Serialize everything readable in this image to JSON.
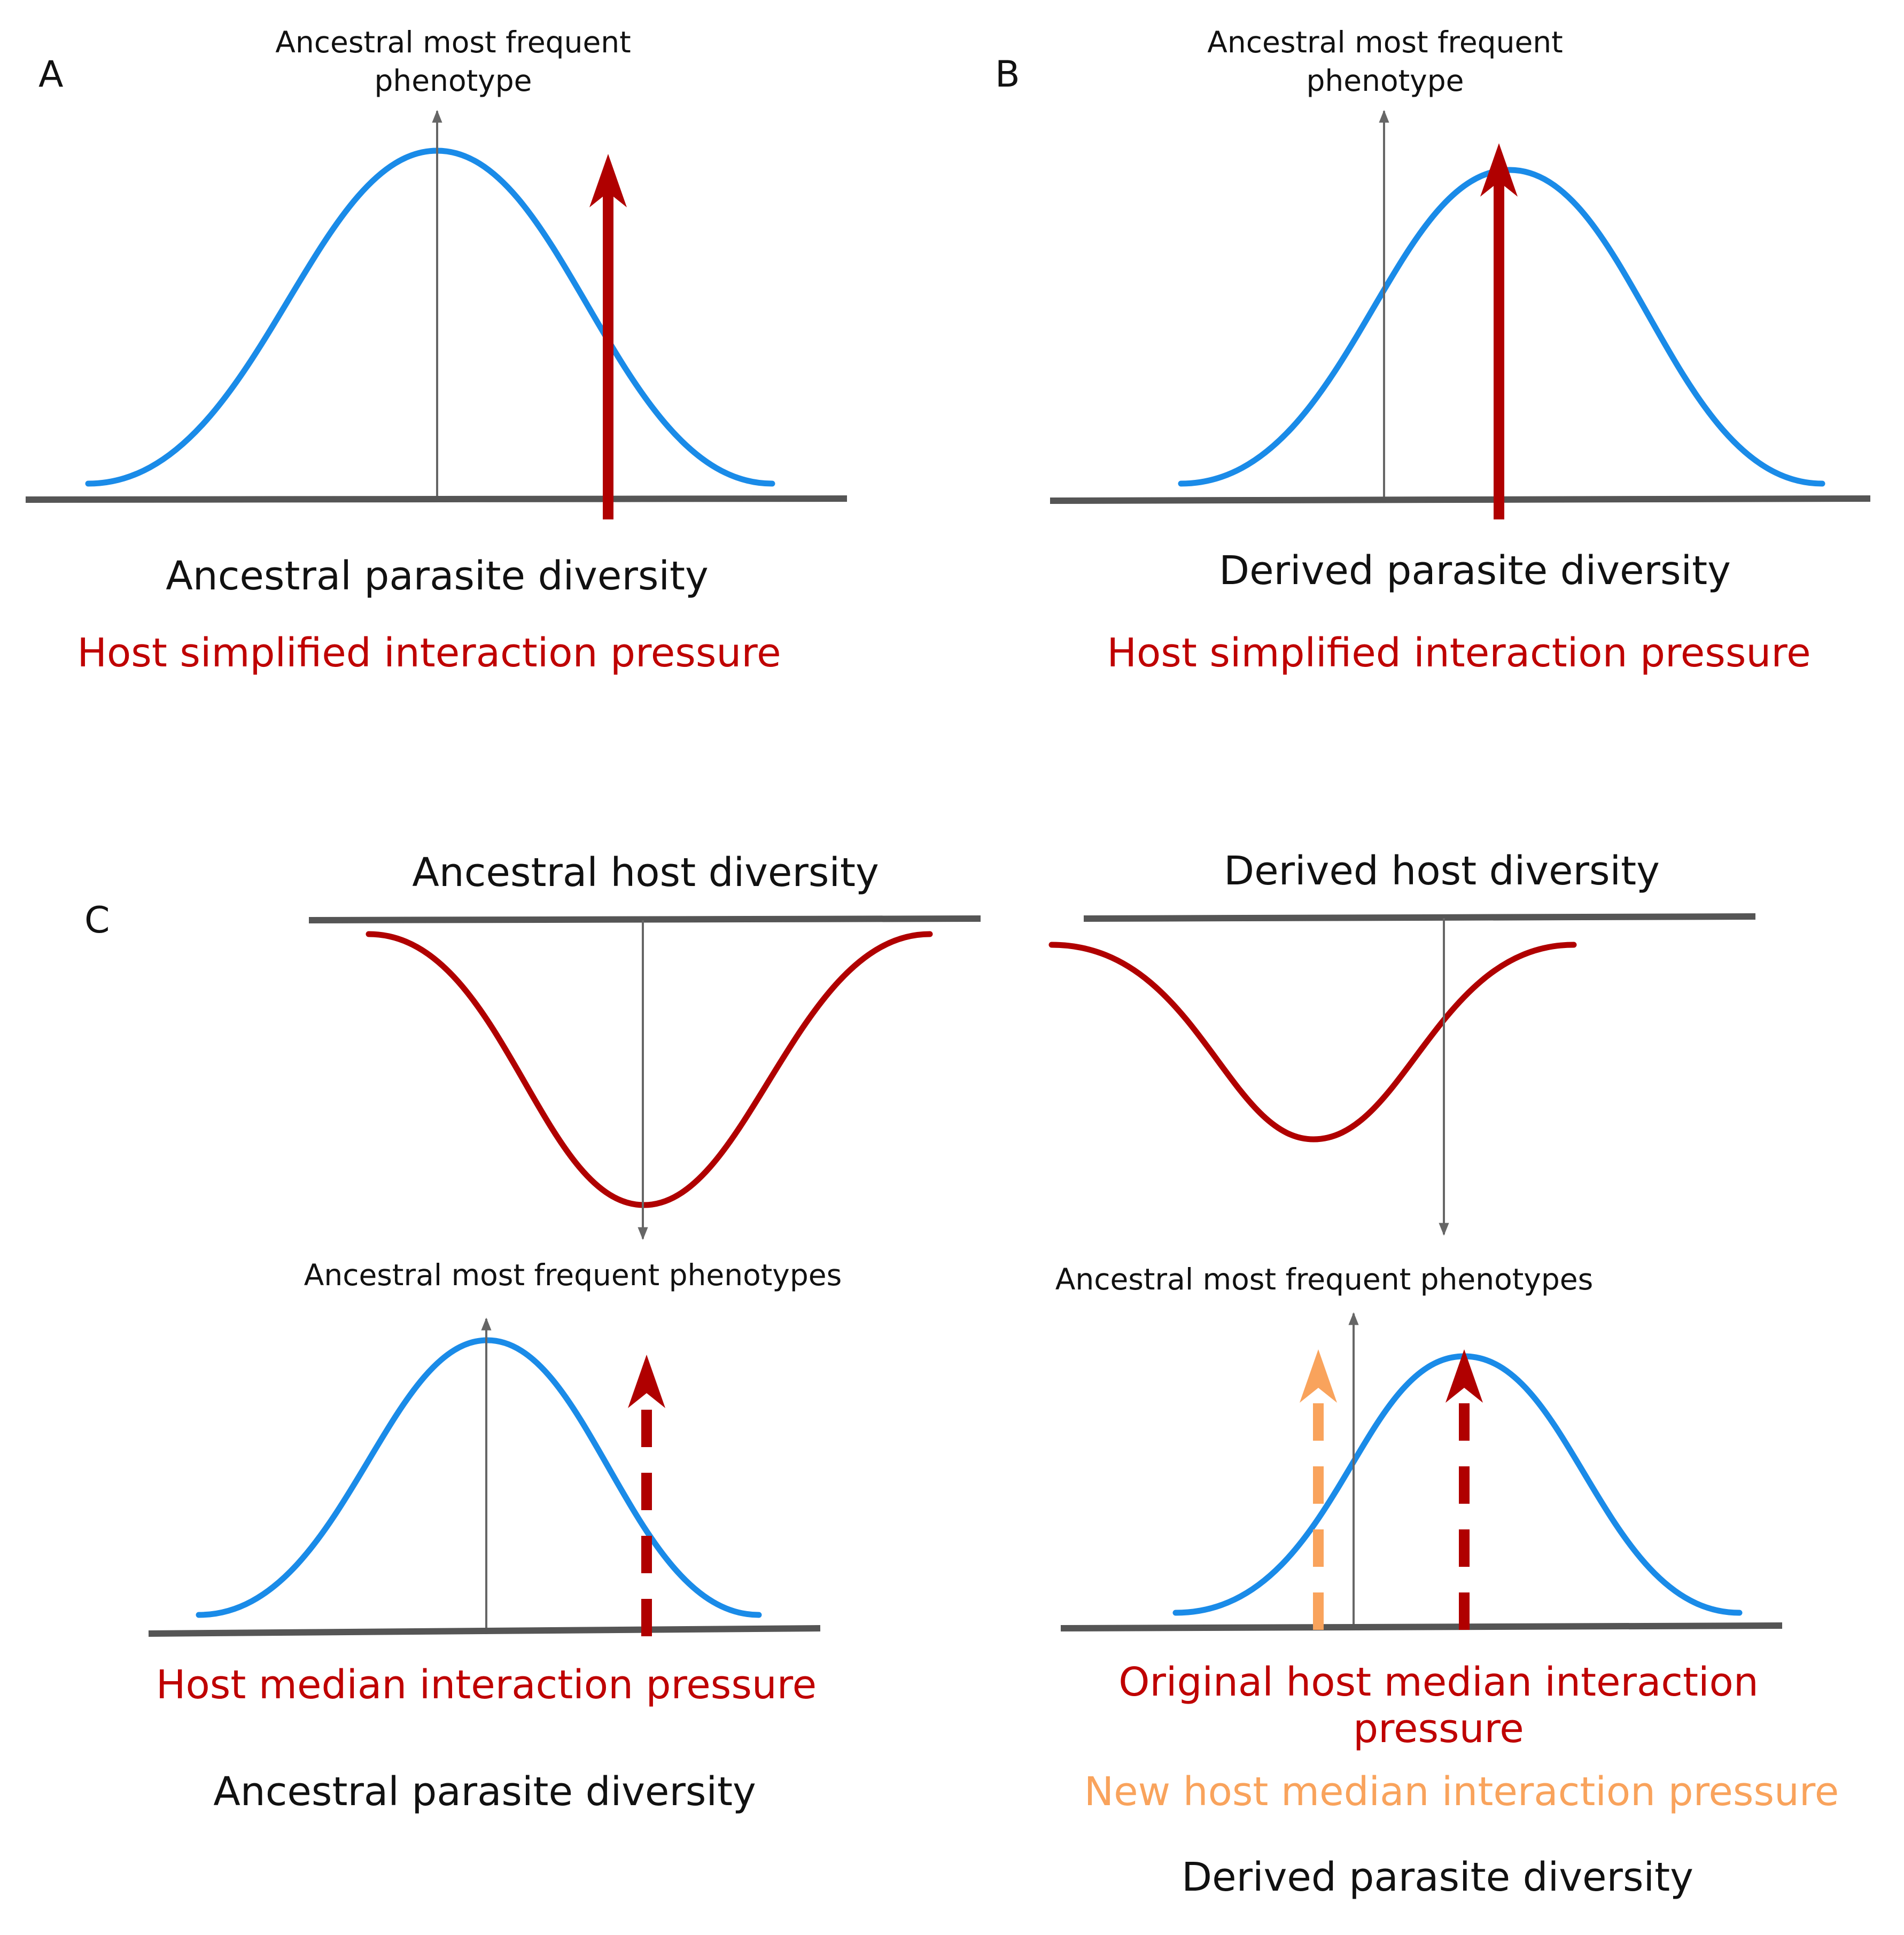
{
  "panels": {
    "a": {
      "letter": "A",
      "mode_label_line1": "Ancestral most frequent",
      "mode_label_line2": "phenotype",
      "diversity_label": "Ancestral parasite diversity",
      "pressure_label": "Host simplified interaction pressure"
    },
    "b": {
      "letter": "B",
      "mode_label_line1": "Ancestral most frequent",
      "mode_label_line2": "phenotype",
      "diversity_label": "Derived parasite diversity",
      "pressure_label": "Host simplified interaction pressure"
    },
    "c": {
      "letter": "C",
      "left": {
        "host_label": "Ancestral host diversity",
        "mode_label": "Ancestral most frequent phenotypes",
        "pressure_label": "Host median interaction pressure",
        "parasite_label": "Ancestral parasite diversity"
      },
      "right": {
        "host_label": "Derived host diversity",
        "mode_label": "Ancestral most frequent phenotypes",
        "pressure_label_line1": "Original host median interaction",
        "pressure_label_line2": "pressure",
        "new_pressure_label": "New host median interaction pressure",
        "parasite_label": "Derived parasite diversity"
      }
    }
  },
  "colors": {
    "parasite_distribution": "#1a8be8",
    "host_distribution": "#b00000",
    "interaction_pressure": "#b00000",
    "new_interaction_pressure": "#f9a35c",
    "pressure_text": "#bf0000",
    "axis": "#555555"
  }
}
